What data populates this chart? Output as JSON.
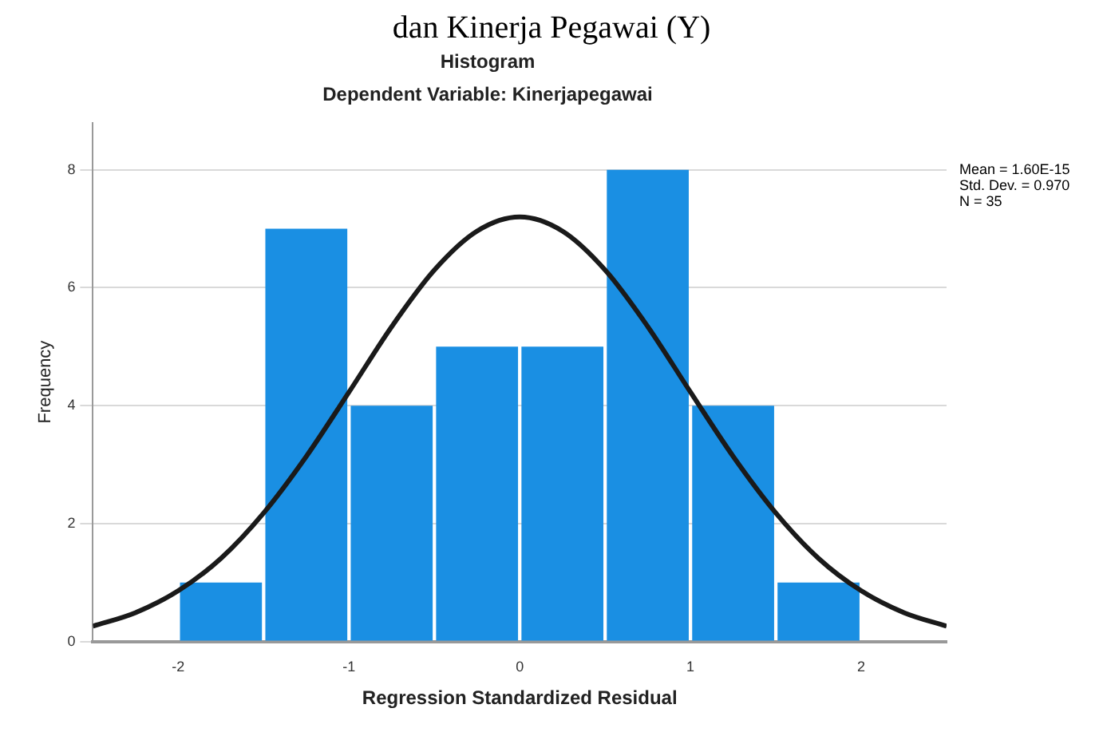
{
  "chart_data": {
    "type": "histogram",
    "title": "Histogram",
    "subtitle": "Dependent Variable: Kinerjapegawai",
    "xlabel": "Regression Standardized Residual",
    "ylabel": "Frequency",
    "bins": [
      -2,
      -1.5,
      -1,
      -0.5,
      0,
      0.5,
      1,
      1.5,
      2
    ],
    "values": [
      1,
      7,
      4,
      5,
      5,
      8,
      4,
      1
    ],
    "color": "#1a8fe3",
    "series": [
      {
        "type": "line",
        "color": "#1a1a1a",
        "x": [
          -2.5,
          -2.25,
          -2,
          -1.75,
          -1.5,
          -1.25,
          -1,
          -0.75,
          -0.5,
          -0.25,
          0,
          0.25,
          0.5,
          0.75,
          1,
          1.25,
          1.5,
          1.75,
          2,
          2.25,
          2.5
        ],
        "values": [
          0.26,
          0.49,
          0.86,
          1.41,
          2.18,
          3.14,
          4.23,
          5.34,
          6.3,
          6.96,
          7.2,
          6.96,
          6.3,
          5.34,
          4.23,
          3.14,
          2.18,
          1.41,
          0.86,
          0.49,
          0.26
        ]
      }
    ],
    "xlim": [
      -2.5,
      2.5
    ],
    "xticks": [
      -2,
      -1,
      0,
      1,
      2
    ],
    "ylim": [
      0,
      8.8
    ],
    "yticks": [
      0,
      2,
      4,
      6,
      8
    ],
    "grid": "y",
    "marker": "none",
    "annotations": [
      "dan Kinerja Pegawai (Y)",
      "Mean = 1.60E-15",
      "Std. Dev. = 0.970",
      "N = 35"
    ]
  }
}
